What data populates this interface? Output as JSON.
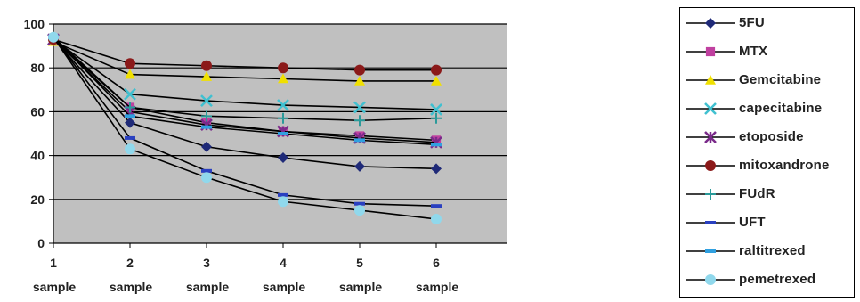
{
  "chart_data": {
    "type": "line",
    "title": "",
    "xlabel": "",
    "ylabel": "",
    "categories": [
      "1 sample",
      "2 sample",
      "3 sample",
      "4 sample",
      "5 sample",
      "6 sample"
    ],
    "x_tick_numbers": [
      "1",
      "2",
      "3",
      "4",
      "5",
      "6"
    ],
    "x_tick_word": "sample",
    "ylim": [
      0,
      100
    ],
    "yticks": [
      0,
      20,
      40,
      60,
      80,
      100
    ],
    "grid": true,
    "plot_background": "#c0c0c0",
    "legend_position": "right",
    "series": [
      {
        "name": "5FU",
        "color": "#1f2a78",
        "marker": "diamond",
        "values": [
          93,
          55,
          44,
          39,
          35,
          34
        ]
      },
      {
        "name": "MTX",
        "color": "#c040a0",
        "marker": "square",
        "values": [
          93,
          62,
          55,
          51,
          49,
          47
        ]
      },
      {
        "name": "Gemcitabine",
        "color": "#f0e000",
        "marker": "triangle",
        "values": [
          92,
          77,
          76,
          75,
          74,
          74
        ]
      },
      {
        "name": "capecitabine",
        "color": "#40c0d0",
        "marker": "x",
        "values": [
          93,
          68,
          65,
          63,
          62,
          61
        ]
      },
      {
        "name": "etoposide",
        "color": "#7a2a8a",
        "marker": "star",
        "values": [
          93,
          60,
          54,
          51,
          48,
          46
        ]
      },
      {
        "name": "mitoxandrone",
        "color": "#8b1a1a",
        "marker": "circle",
        "values": [
          93,
          82,
          81,
          80,
          79,
          79
        ]
      },
      {
        "name": "FUdR",
        "color": "#2a9a9a",
        "marker": "plus",
        "values": [
          94,
          62,
          58,
          57,
          56,
          57
        ]
      },
      {
        "name": "UFT",
        "color": "#2a40c0",
        "marker": "dash",
        "values": [
          94,
          48,
          33,
          22,
          18,
          17
        ]
      },
      {
        "name": "raltitrexed",
        "color": "#30a0e0",
        "marker": "dash",
        "values": [
          94,
          58,
          53,
          50,
          47,
          45
        ]
      },
      {
        "name": "pemetrexed",
        "color": "#90d8ec",
        "marker": "circle",
        "values": [
          94,
          43,
          30,
          19,
          15,
          11
        ]
      }
    ]
  }
}
